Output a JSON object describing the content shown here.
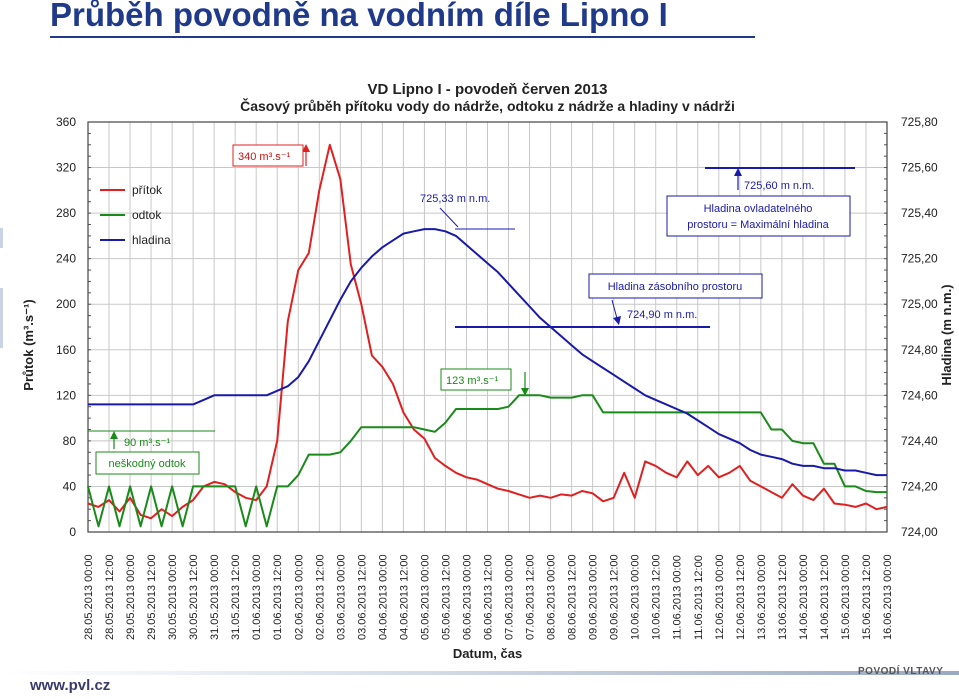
{
  "slide": {
    "title": "Průběh povodně na vodním díle Lipno I",
    "footer_url": "www.pvl.cz",
    "footer_brand": "POVODÍ VLTAVY"
  },
  "chart_data": {
    "type": "line",
    "title": "VD Lipno I - povodeň červen 2013",
    "subtitle": "Časový průběh přítoku vody do nádrže, odtoku z nádrže a hladiny v nádrži",
    "xlabel": "Datum, čas",
    "ylabel": "Průtok (m³.s⁻¹)",
    "y2label": "Hladina (m n.m.)",
    "ylim": [
      0,
      360
    ],
    "y2lim": [
      724.0,
      725.8
    ],
    "y_ticks": [
      "0",
      "40",
      "80",
      "120",
      "160",
      "200",
      "240",
      "280",
      "320",
      "360"
    ],
    "y2_ticks": [
      "724,00",
      "724,20",
      "724,40",
      "724,60",
      "724,80",
      "725,00",
      "725,20",
      "725,40",
      "725,60",
      "725,80"
    ],
    "x_ticks": [
      "28.05.2013 00:00",
      "28.05.2013 12:00",
      "29.05.2013 00:00",
      "29.05.2013 12:00",
      "30.05.2013 00:00",
      "30.05.2013 12:00",
      "31.05.2013 00:00",
      "31.05.2013 12:00",
      "01.06.2013 00:00",
      "01.06.2013 12:00",
      "02.06.2013 00:00",
      "02.06.2013 12:00",
      "03.06.2013 00:00",
      "03.06.2013 12:00",
      "04.06.2013 00:00",
      "04.06.2013 12:00",
      "05.06.2013 00:00",
      "05.06.2013 12:00",
      "06.06.2013 00:00",
      "06.06.2013 12:00",
      "07.06.2013 00:00",
      "07.06.2013 12:00",
      "08.06.2013 00:00",
      "08.06.2013 12:00",
      "09.06.2013 00:00",
      "09.06.2013 12:00",
      "10.06.2013 00:00",
      "10.06.2013 12:00",
      "11.06.2013 00:00",
      "11.06.2013 12:00",
      "12.06.2013 00:00",
      "12.06.2013 12:00",
      "13.06.2013 00:00",
      "13.06.2013 12:00",
      "14.06.2013 00:00",
      "14.06.2013 12:00",
      "15.06.2013 00:00",
      "15.06.2013 12:00",
      "16.06.2013 00:00"
    ],
    "grid": true,
    "legend_position": "top-left",
    "series": [
      {
        "name": "přítok",
        "color": "#e02020",
        "axis": "left",
        "x": [
          0,
          0.5,
          1,
          1.5,
          2,
          2.5,
          3,
          3.5,
          4,
          4.5,
          5,
          5.5,
          6,
          6.5,
          7,
          7.5,
          8,
          8.5,
          9,
          9.5,
          10,
          10.5,
          11,
          11.5,
          12,
          12.5,
          13,
          13.5,
          14,
          14.5,
          15,
          15.5,
          16,
          16.5,
          17,
          17.5,
          18,
          18.5,
          19,
          19.5,
          20,
          20.5,
          21,
          21.5,
          22,
          22.5,
          23,
          23.5,
          24,
          24.5,
          25,
          25.5,
          26,
          26.5,
          27,
          27.5,
          28,
          28.5,
          29,
          29.5,
          30,
          30.5,
          31,
          31.5,
          32,
          32.5,
          33,
          33.5,
          34,
          34.5,
          35,
          35.5,
          36,
          36.5,
          37,
          37.5,
          38
        ],
        "values": [
          25,
          22,
          28,
          18,
          30,
          15,
          12,
          20,
          14,
          22,
          28,
          40,
          44,
          42,
          35,
          30,
          28,
          40,
          80,
          185,
          230,
          245,
          300,
          340,
          310,
          235,
          200,
          155,
          145,
          130,
          105,
          90,
          82,
          65,
          58,
          52,
          48,
          46,
          42,
          38,
          36,
          33,
          30,
          32,
          30,
          33,
          32,
          36,
          34,
          27,
          30,
          52,
          30,
          62,
          58,
          52,
          48,
          62,
          50,
          58,
          48,
          52,
          58,
          45,
          40,
          35,
          30,
          42,
          32,
          28,
          38,
          25,
          24,
          22,
          25,
          20,
          22
        ]
      },
      {
        "name": "odtok",
        "color": "#1a8a1a",
        "axis": "left",
        "x": [
          0,
          0.5,
          1,
          1.5,
          2,
          2.5,
          3,
          3.5,
          4,
          4.5,
          5,
          5.5,
          6,
          6.5,
          7,
          7.5,
          8,
          8.5,
          9,
          9.5,
          10,
          10.5,
          11,
          11.5,
          12,
          12.5,
          13,
          13.5,
          14,
          14.5,
          15,
          15.5,
          16,
          16.5,
          17,
          17.5,
          18,
          18.5,
          19,
          19.5,
          20,
          20.5,
          21,
          21.5,
          22,
          22.5,
          23,
          23.5,
          24,
          24.5,
          25,
          25.5,
          26,
          26.5,
          27,
          27.5,
          28,
          28.5,
          29,
          29.5,
          30,
          30.5,
          31,
          31.5,
          32,
          32.5,
          33,
          33.5,
          34,
          34.5,
          35,
          35.5,
          36,
          36.5,
          37,
          37.5,
          38
        ],
        "values": [
          40,
          5,
          40,
          5,
          40,
          5,
          40,
          5,
          40,
          5,
          40,
          40,
          40,
          40,
          40,
          5,
          40,
          5,
          40,
          40,
          50,
          68,
          68,
          68,
          70,
          80,
          92,
          92,
          92,
          92,
          92,
          92,
          90,
          88,
          96,
          108,
          108,
          108,
          108,
          108,
          110,
          120,
          120,
          120,
          118,
          118,
          118,
          120,
          120,
          105,
          105,
          105,
          105,
          105,
          105,
          105,
          105,
          105,
          105,
          105,
          105,
          105,
          105,
          105,
          105,
          90,
          90,
          80,
          78,
          78,
          60,
          60,
          40,
          40,
          36,
          35,
          35
        ]
      },
      {
        "name": "hladina",
        "color": "#1a1aaa",
        "axis": "right",
        "x": [
          0,
          0.5,
          1,
          1.5,
          2,
          2.5,
          3,
          3.5,
          4,
          4.5,
          5,
          5.5,
          6,
          6.5,
          7,
          7.5,
          8,
          8.5,
          9,
          9.5,
          10,
          10.5,
          11,
          11.5,
          12,
          12.5,
          13,
          13.5,
          14,
          14.5,
          15,
          15.5,
          16,
          16.5,
          17,
          17.5,
          18,
          18.5,
          19,
          19.5,
          20,
          20.5,
          21,
          21.5,
          22,
          22.5,
          23,
          23.5,
          24,
          24.5,
          25,
          25.5,
          26,
          26.5,
          27,
          27.5,
          28,
          28.5,
          29,
          29.5,
          30,
          30.5,
          31,
          31.5,
          32,
          32.5,
          33,
          33.5,
          34,
          34.5,
          35,
          35.5,
          36,
          36.5,
          37,
          37.5,
          38
        ],
        "values": [
          724.56,
          724.56,
          724.56,
          724.56,
          724.56,
          724.56,
          724.56,
          724.56,
          724.56,
          724.56,
          724.56,
          724.58,
          724.6,
          724.6,
          724.6,
          724.6,
          724.6,
          724.6,
          724.62,
          724.64,
          724.68,
          724.75,
          724.84,
          724.93,
          725.02,
          725.1,
          725.16,
          725.21,
          725.25,
          725.28,
          725.31,
          725.32,
          725.33,
          725.33,
          725.32,
          725.3,
          725.26,
          725.22,
          725.18,
          725.14,
          725.09,
          725.04,
          724.99,
          724.94,
          724.9,
          724.86,
          724.82,
          724.78,
          724.75,
          724.72,
          724.69,
          724.66,
          724.63,
          724.6,
          724.58,
          724.56,
          724.54,
          724.52,
          724.49,
          724.46,
          724.43,
          724.41,
          724.39,
          724.36,
          724.34,
          724.33,
          724.32,
          724.3,
          724.29,
          724.29,
          724.28,
          724.28,
          724.27,
          724.27,
          724.26,
          724.25,
          724.25
        ]
      }
    ],
    "annotations": {
      "peak_inflow": "340 m³.s⁻¹",
      "max_level": "725,33  m n.m.",
      "control_level": "725,60  m n.m.",
      "control_box": [
        "Hladina ovladatelného",
        "prostoru = Maximální hladina"
      ],
      "storage_box": "Hladina zásobního prostoru",
      "storage_level": "724,90  m n.m.",
      "outflow_123": "123 m³.s⁻¹",
      "outflow_90": "90 m³.s⁻¹",
      "harmless_box": "neškodný odtok"
    }
  }
}
